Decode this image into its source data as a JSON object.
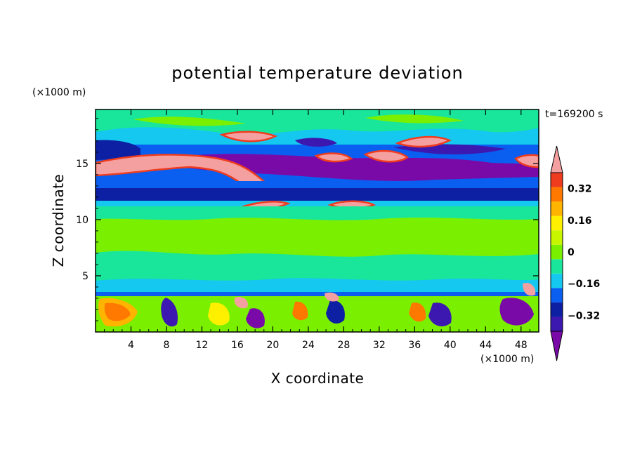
{
  "chart_data": {
    "type": "heatmap",
    "title": "potential temperature deviation",
    "xlabel": "X coordinate",
    "ylabel": "Z coordinate",
    "x_unit": "(×1000 m)",
    "y_unit": "(×1000 m)",
    "time_label": "t=169200 s",
    "xlim": [
      0,
      50
    ],
    "ylim": [
      0,
      19.8
    ],
    "x_ticks": [
      4,
      8,
      12,
      16,
      20,
      24,
      28,
      32,
      36,
      40,
      44,
      48
    ],
    "y_ticks": [
      5,
      10,
      15
    ],
    "x_tick_labels": [
      "4",
      "8",
      "12",
      "16",
      "20",
      "24",
      "28",
      "32",
      "36",
      "40",
      "44",
      "48"
    ],
    "y_tick_labels": [
      "5",
      "10",
      "15"
    ],
    "colorbar": {
      "levels": [
        -0.48,
        -0.4,
        -0.32,
        -0.24,
        -0.16,
        -0.08,
        0,
        0.08,
        0.16,
        0.24,
        0.32,
        0.4,
        0.48
      ],
      "tick_values": [
        -0.32,
        -0.16,
        0,
        0.16,
        0.32
      ],
      "tick_labels": [
        "−0.32",
        "−0.16",
        "0",
        "0.16",
        "0.32"
      ],
      "colors": [
        "#7a0aa8",
        "#3d18b0",
        "#0d1fa3",
        "#0a5ff0",
        "#14c8f0",
        "#19e69a",
        "#7af000",
        "#c8f500",
        "#fff000",
        "#ffb400",
        "#ff7800",
        "#f03c1e",
        "#f5a0a0"
      ],
      "extend": "both"
    },
    "bands": [
      {
        "z": [
          0,
          3.3
        ],
        "desc": "convective boundary layer, mixed values"
      },
      {
        "z": [
          3.3,
          3.8
        ],
        "value": -0.12
      },
      {
        "z": [
          3.8,
          11.0
        ],
        "value": 0.05
      },
      {
        "z": [
          11.0,
          11.6
        ],
        "value": -0.15
      },
      {
        "z": [
          11.6,
          12.6
        ],
        "value": -0.28
      },
      {
        "z": [
          12.6,
          13.9
        ],
        "value": -0.22
      },
      {
        "z": [
          13.9,
          16.8
        ],
        "desc": "upper layer, mixed values"
      },
      {
        "z": [
          16.8,
          19.8
        ],
        "value": 0.02
      }
    ]
  }
}
